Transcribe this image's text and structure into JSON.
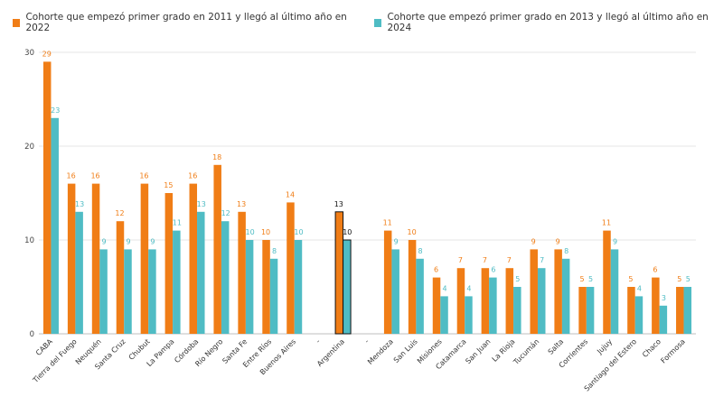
{
  "chart_data": {
    "type": "bar",
    "title": "",
    "xlabel": "",
    "ylabel": "",
    "ylim": [
      0,
      30
    ],
    "yticks": [
      0,
      10,
      20,
      30
    ],
    "grid": true,
    "legend_position": "top-left",
    "categories": [
      "CABA",
      "Tierra del Fuego",
      "Neuquén",
      "Santa Cruz",
      "Chubut",
      "La Pampa",
      "Córdoba",
      "Río Negro",
      "Santa Fe",
      "Entre Ríos",
      "Buenos Aires",
      "-",
      "Argentina",
      "-",
      "Mendoza",
      "San Luis",
      "Misiones",
      "Catamarca",
      "San Juan",
      "La Rioja",
      "Tucumán",
      "Salta",
      "Corrientes",
      "Jujuy",
      "Santiago del Estero",
      "Chaco",
      "Formosa"
    ],
    "highlight_category": "Argentina",
    "series": [
      {
        "name": "Cohorte que empezó primer grado en 2011 y llegó al último año en 2022",
        "color": "#f07d16",
        "values": [
          29,
          16,
          16,
          12,
          16,
          15,
          16,
          18,
          13,
          10,
          14,
          null,
          13,
          null,
          11,
          10,
          6,
          7,
          7,
          7,
          9,
          9,
          5,
          11,
          5,
          6,
          5
        ]
      },
      {
        "name": "Cohorte que empezó primer grado en 2013 y llegó al último año en 2024",
        "color": "#4fbcc4",
        "values": [
          23,
          13,
          9,
          9,
          9,
          11,
          13,
          12,
          10,
          8,
          10,
          null,
          10,
          null,
          9,
          8,
          4,
          4,
          6,
          5,
          7,
          8,
          5,
          9,
          4,
          3,
          5
        ]
      }
    ]
  }
}
